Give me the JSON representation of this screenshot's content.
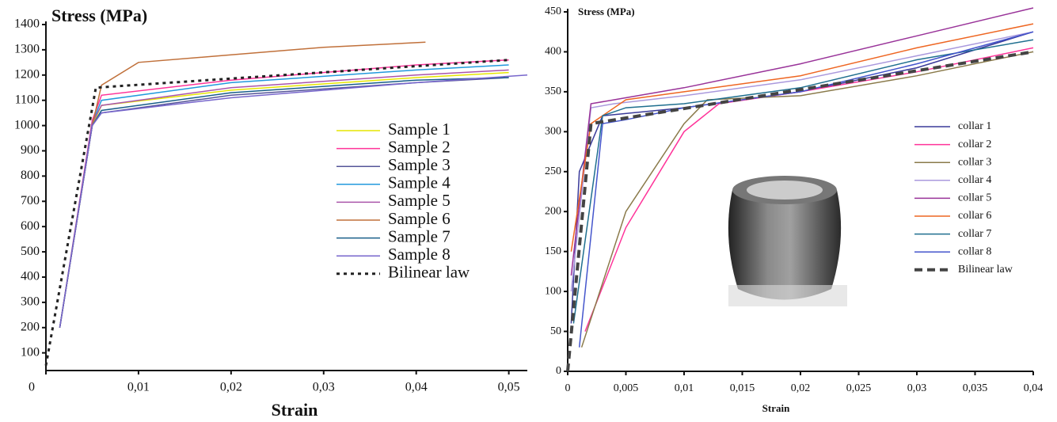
{
  "chart_data": [
    {
      "type": "line",
      "y_label": "Stress (MPa)",
      "x_label": "Strain",
      "xlim": [
        0,
        0.052
      ],
      "ylim": [
        30,
        1400
      ],
      "xticks": [
        {
          "value": 0,
          "label": "0"
        },
        {
          "value": 0.01,
          "label": "0,01"
        },
        {
          "value": 0.02,
          "label": "0,02"
        },
        {
          "value": 0.03,
          "label": "0,03"
        },
        {
          "value": 0.04,
          "label": "0,04"
        },
        {
          "value": 0.05,
          "label": "0,05"
        }
      ],
      "yticks": [
        100,
        200,
        300,
        400,
        500,
        600,
        700,
        800,
        900,
        1000,
        1100,
        1200,
        1300,
        1400
      ],
      "series": [
        {
          "name": "Sample 1",
          "color": "#e6e600",
          "x": [
            0.0015,
            0.005,
            0.006,
            0.02,
            0.04,
            0.05
          ],
          "values": [
            200,
            1000,
            1080,
            1140,
            1190,
            1210
          ]
        },
        {
          "name": "Sample 2",
          "color": "#ff3399",
          "x": [
            0.0015,
            0.005,
            0.006,
            0.02,
            0.04,
            0.05
          ],
          "values": [
            200,
            1020,
            1120,
            1180,
            1240,
            1260
          ]
        },
        {
          "name": "Sample 3",
          "color": "#555599",
          "x": [
            0.0015,
            0.005,
            0.006,
            0.02,
            0.04,
            0.05
          ],
          "values": [
            200,
            1000,
            1050,
            1120,
            1170,
            1190
          ]
        },
        {
          "name": "Sample 4",
          "color": "#2299dd",
          "x": [
            0.0015,
            0.005,
            0.006,
            0.02,
            0.04,
            0.05
          ],
          "values": [
            200,
            1010,
            1100,
            1170,
            1220,
            1240
          ]
        },
        {
          "name": "Sample 5",
          "color": "#aa55aa",
          "x": [
            0.0015,
            0.005,
            0.006,
            0.02,
            0.04,
            0.05
          ],
          "values": [
            200,
            1010,
            1080,
            1150,
            1200,
            1220
          ]
        },
        {
          "name": "Sample 6",
          "color": "#c0703a",
          "x": [
            0.0015,
            0.005,
            0.006,
            0.01,
            0.02,
            0.03,
            0.041
          ],
          "values": [
            200,
            1000,
            1160,
            1250,
            1280,
            1310,
            1330
          ]
        },
        {
          "name": "Sample 7",
          "color": "#1a5f8a",
          "x": [
            0.0015,
            0.005,
            0.006,
            0.02,
            0.04,
            0.05
          ],
          "values": [
            200,
            1000,
            1060,
            1130,
            1180,
            1190
          ]
        },
        {
          "name": "Sample 8",
          "color": "#7766cc",
          "x": [
            0.0015,
            0.005,
            0.006,
            0.02,
            0.04,
            0.052
          ],
          "values": [
            200,
            1000,
            1050,
            1110,
            1170,
            1200
          ]
        },
        {
          "name": "Bilinear law",
          "color": "#222222",
          "line_style": "dotted",
          "x": [
            0,
            0.0054,
            0.05
          ],
          "values": [
            50,
            1150,
            1260
          ]
        }
      ]
    },
    {
      "type": "line",
      "y_label": "Stress (MPa)",
      "x_label": "Strain",
      "xlim": [
        0,
        0.04
      ],
      "ylim": [
        0,
        450
      ],
      "xticks": [
        0,
        {
          "value": 0.005,
          "label": "0,005"
        },
        {
          "value": 0.01,
          "label": "0,01"
        },
        {
          "value": 0.015,
          "label": "0,015"
        },
        {
          "value": 0.02,
          "label": "0,02"
        },
        {
          "value": 0.025,
          "label": "0,025"
        },
        {
          "value": 0.03,
          "label": "0,03"
        },
        {
          "value": 0.035,
          "label": "0,035"
        },
        {
          "value": 0.04,
          "label": "0,04"
        }
      ],
      "yticks": [
        0,
        50,
        100,
        150,
        200,
        250,
        300,
        350,
        400,
        450
      ],
      "series": [
        {
          "name": "collar 1",
          "color": "#3a3a9a",
          "x": [
            0.0003,
            0.001,
            0.003,
            0.01,
            0.02,
            0.03,
            0.04
          ],
          "values": [
            60,
            250,
            320,
            330,
            350,
            380,
            425
          ]
        },
        {
          "name": "collar 2",
          "color": "#ff3399",
          "x": [
            0.0015,
            0.005,
            0.01,
            0.013,
            0.02,
            0.03,
            0.04
          ],
          "values": [
            50,
            180,
            300,
            335,
            350,
            375,
            405
          ]
        },
        {
          "name": "collar 3",
          "color": "#8a7a4a",
          "x": [
            0.0012,
            0.005,
            0.01,
            0.012,
            0.02,
            0.03,
            0.04
          ],
          "values": [
            30,
            200,
            310,
            340,
            345,
            370,
            400
          ]
        },
        {
          "name": "collar 4",
          "color": "#aa99dd",
          "x": [
            0.0003,
            0.002,
            0.004,
            0.01,
            0.02,
            0.03,
            0.04
          ],
          "values": [
            100,
            330,
            335,
            345,
            365,
            395,
            425
          ]
        },
        {
          "name": "collar 5",
          "color": "#993399",
          "x": [
            0.0003,
            0.002,
            0.004,
            0.01,
            0.02,
            0.03,
            0.04
          ],
          "values": [
            120,
            335,
            340,
            355,
            385,
            420,
            455
          ]
        },
        {
          "name": "collar 6",
          "color": "#ee6622",
          "x": [
            0.0003,
            0.002,
            0.005,
            0.01,
            0.02,
            0.03,
            0.04
          ],
          "values": [
            150,
            310,
            340,
            350,
            370,
            405,
            435
          ]
        },
        {
          "name": "collar 7",
          "color": "#1f6f8f",
          "x": [
            0.0005,
            0.003,
            0.005,
            0.01,
            0.02,
            0.03,
            0.04
          ],
          "values": [
            60,
            320,
            330,
            335,
            355,
            390,
            415
          ]
        },
        {
          "name": "collar 8",
          "color": "#4455cc",
          "x": [
            0.001,
            0.003,
            0.005,
            0.01,
            0.02,
            0.03,
            0.04
          ],
          "values": [
            30,
            310,
            315,
            330,
            350,
            385,
            425
          ]
        },
        {
          "name": "Bilinear law",
          "color": "#444444",
          "line_style": "dashed",
          "x": [
            0,
            0.002,
            0.04
          ],
          "values": [
            0,
            310,
            400
          ]
        }
      ]
    }
  ]
}
